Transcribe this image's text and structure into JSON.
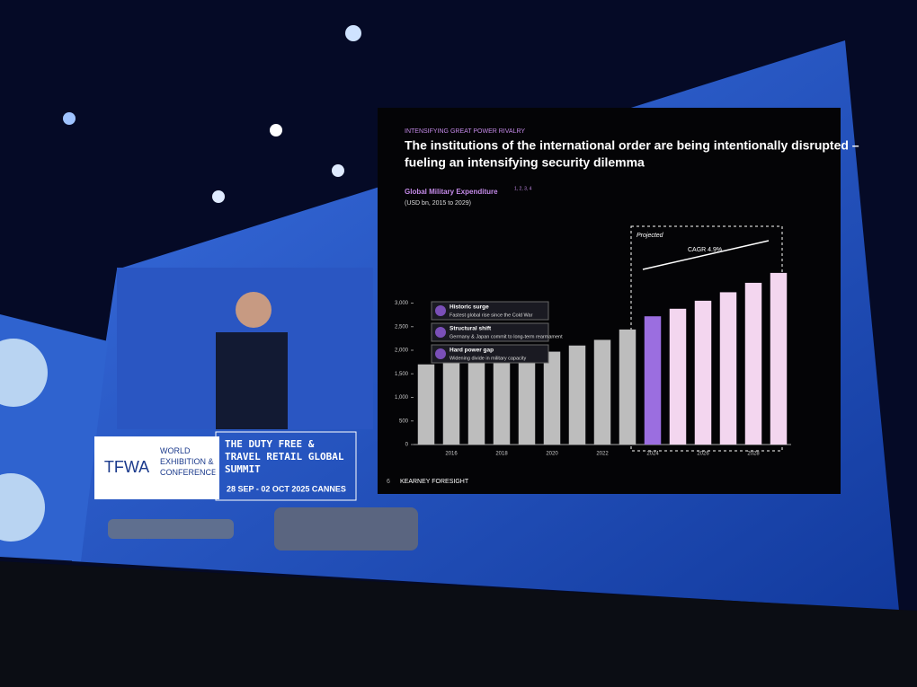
{
  "banner": {
    "logo": "TFWA",
    "event": "WORLD EXHIBITION & CONFERENCE",
    "summit": "THE DUTY FREE & TRAVEL RETAIL GLOBAL SUMMIT",
    "dates": "28 SEP - 02 OCT 2025 CANNES"
  },
  "slide": {
    "kicker": "INTENSIFYING GREAT POWER RIVALRY",
    "callouts": [
      {
        "title": "Historic surge",
        "text": "Fastest global rise since the Cold War"
      },
      {
        "title": "Structural shift",
        "text": "Germany & Japan commit to long-term rearmament"
      },
      {
        "title": "Hard power gap",
        "text": "Widening divide in military capacity"
      }
    ],
    "projected": "Projected",
    "cagr": "CAGR 4.9%",
    "page": "6",
    "footer": "KEARNEY FORESIGHT"
  },
  "chart_data": {
    "type": "bar",
    "title": [
      "The institutions of the international order are being intentionally disrupted –",
      "fueling an intensifying security dilemma"
    ],
    "subtitle": "Global Military Expenditure",
    "subtitle_note": "1, 2, 3, 4",
    "unit": "(USD bn, 2015 to 2029)",
    "categories": [
      null,
      "2016",
      null,
      "2018",
      null,
      "2020",
      null,
      "2022",
      null,
      "2024",
      null,
      "2026",
      null,
      "2028",
      null
    ],
    "values": [
      1700,
      1730,
      1780,
      1830,
      1900,
      1970,
      2100,
      2220,
      2440,
      2720,
      2880,
      3050,
      3230,
      3430,
      3640
    ],
    "colors": [
      "#bdbdbd",
      "#bdbdbd",
      "#bdbdbd",
      "#bdbdbd",
      "#bdbdbd",
      "#bdbdbd",
      "#bdbdbd",
      "#bdbdbd",
      "#bdbdbd",
      "#9b6ee0",
      "#f3d6ef",
      "#f3d6ef",
      "#f3d6ef",
      "#f3d6ef",
      "#f3d6ef"
    ],
    "ylim": [
      0,
      4000
    ],
    "yticks": [
      0,
      500,
      {
        "value": 1000,
        "label": "1,000"
      },
      {
        "value": 1500,
        "label": "1,500"
      },
      {
        "value": 2000,
        "label": "2,000"
      },
      {
        "value": 2500,
        "label": "2,500"
      },
      {
        "value": 3000,
        "label": "3,000"
      }
    ]
  }
}
